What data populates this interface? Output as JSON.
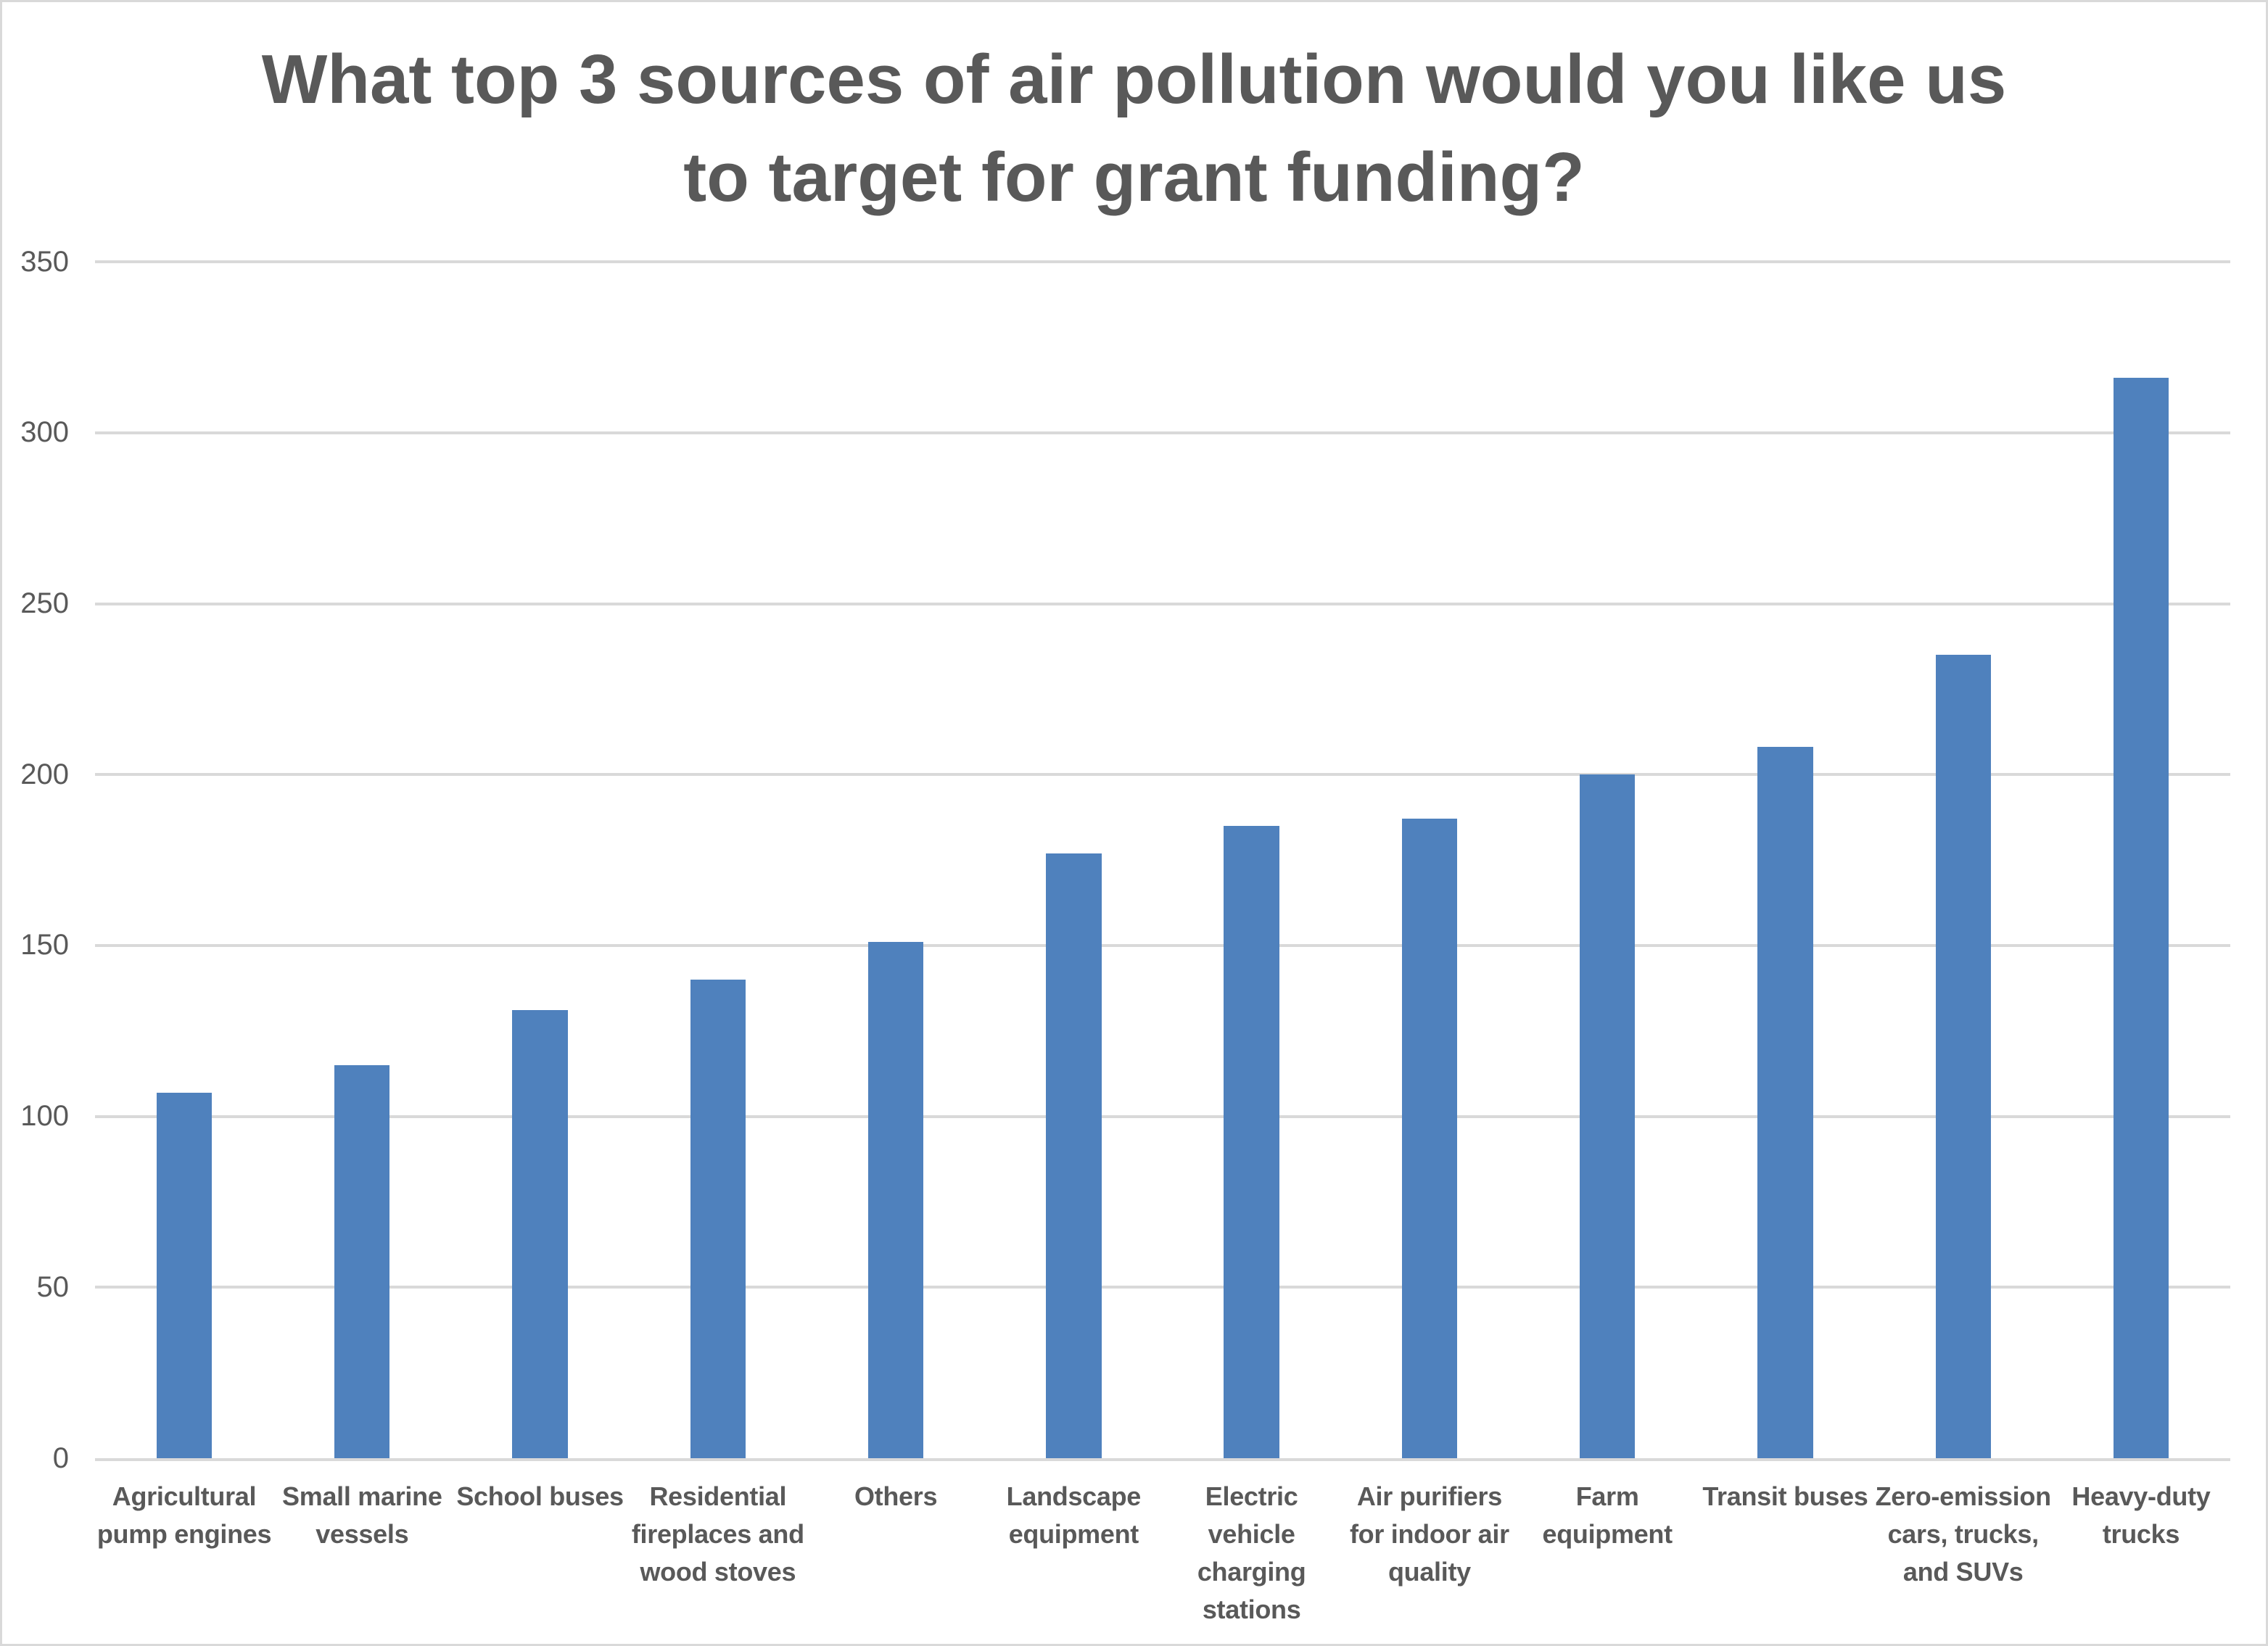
{
  "chart_data": {
    "type": "bar",
    "title": "What top 3 sources of air pollution would you like us to target for grant funding?",
    "title_lines": [
      "What top 3 sources of air pollution would you like us",
      "to target for grant funding?"
    ],
    "categories": [
      "Agricultural pump engines",
      "Small marine vessels",
      "School buses",
      "Residential fireplaces and wood stoves",
      "Others",
      "Landscape equipment",
      "Electric vehicle charging stations",
      "Air purifiers for indoor air quality",
      "Farm equipment",
      "Transit buses",
      "Zero-emission cars, trucks, and SUVs",
      "Heavy-duty trucks"
    ],
    "categories_wrapped": [
      [
        "Agricultural",
        "pump engines"
      ],
      [
        "Small marine",
        "vessels"
      ],
      [
        "School buses"
      ],
      [
        "Residential",
        "fireplaces and",
        "wood stoves"
      ],
      [
        "Others"
      ],
      [
        "Landscape",
        "equipment"
      ],
      [
        "Electric",
        "vehicle",
        "charging",
        "stations"
      ],
      [
        "Air purifiers",
        "for indoor air",
        "quality"
      ],
      [
        "Farm",
        "equipment"
      ],
      [
        "Transit buses"
      ],
      [
        "Zero-emission",
        "cars, trucks,",
        "and SUVs"
      ],
      [
        "Heavy-duty",
        "trucks"
      ]
    ],
    "values": [
      107,
      115,
      131,
      140,
      151,
      177,
      185,
      187,
      200,
      208,
      235,
      316
    ],
    "xlabel": "",
    "ylabel": "",
    "ylim": [
      0,
      350
    ],
    "yticks": [
      0,
      50,
      100,
      150,
      200,
      250,
      300,
      350
    ],
    "grid": true,
    "legend": false,
    "bar_color": "#4F81BD",
    "gridline_color": "#D9D9D9",
    "axis_line_color": "#D9D9D9",
    "text_color": "#595959",
    "background_color": "#FFFFFF",
    "border_color": "#D9D9D9"
  }
}
